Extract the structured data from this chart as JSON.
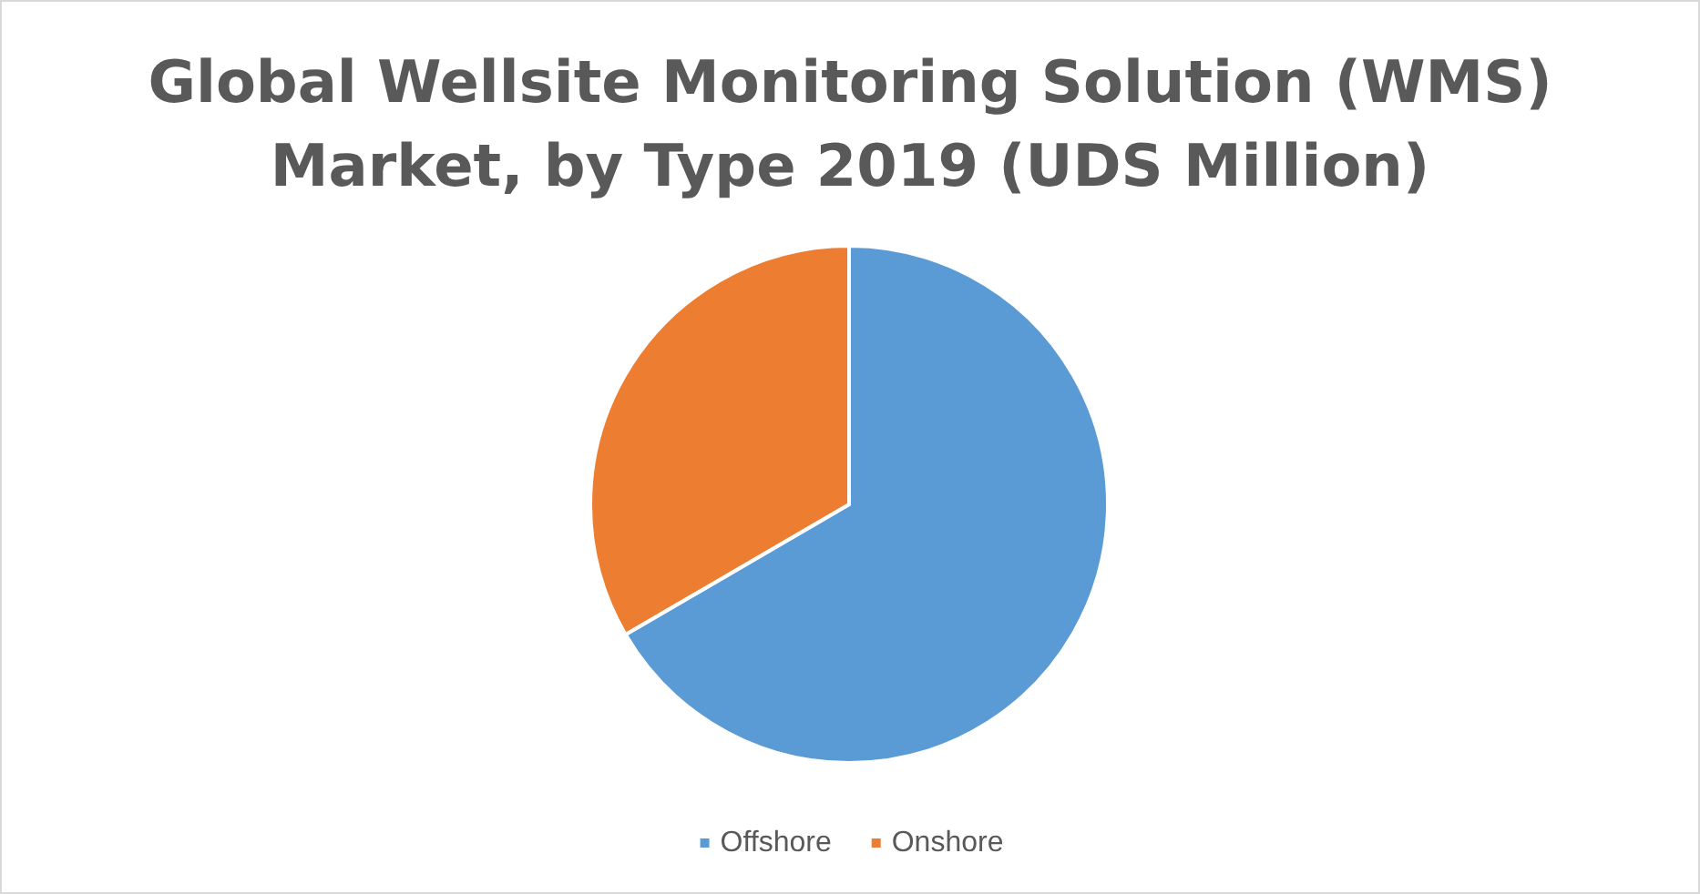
{
  "chart_data": {
    "type": "pie",
    "title": "Global Wellsite Monitoring Solution (WMS)\nMarket, by Type 2019 (UDS Million)",
    "categories": [
      "Offshore",
      "Onshore"
    ],
    "values": [
      66.6,
      33.4
    ],
    "colors": [
      "#5b9bd5",
      "#ed7d31"
    ],
    "legend": "bottom"
  }
}
